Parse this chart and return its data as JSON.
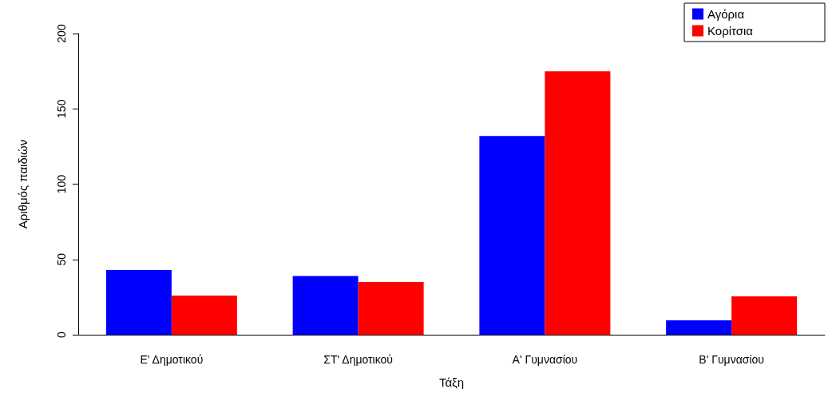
{
  "chart_data": {
    "type": "bar",
    "xlabel": "Τάξη",
    "ylabel": "Αριθμός παιδιών",
    "categories": [
      "Ε' Δημοτικού",
      "ΣΤ' Δημοτικού",
      "Α' Γυμνασίου",
      "Β' Γυμνασίου"
    ],
    "series": [
      {
        "name": "Αγόρια",
        "color": "#0000ff",
        "values": [
          43,
          39,
          132,
          9.5
        ]
      },
      {
        "name": "Κορίτσια",
        "color": "#ff0000",
        "values": [
          26,
          35,
          175,
          25.5
        ]
      }
    ],
    "ylim": [
      0,
      200
    ],
    "yticks": [
      0,
      50,
      100,
      150,
      200
    ],
    "grid": false,
    "legend": "top right"
  }
}
